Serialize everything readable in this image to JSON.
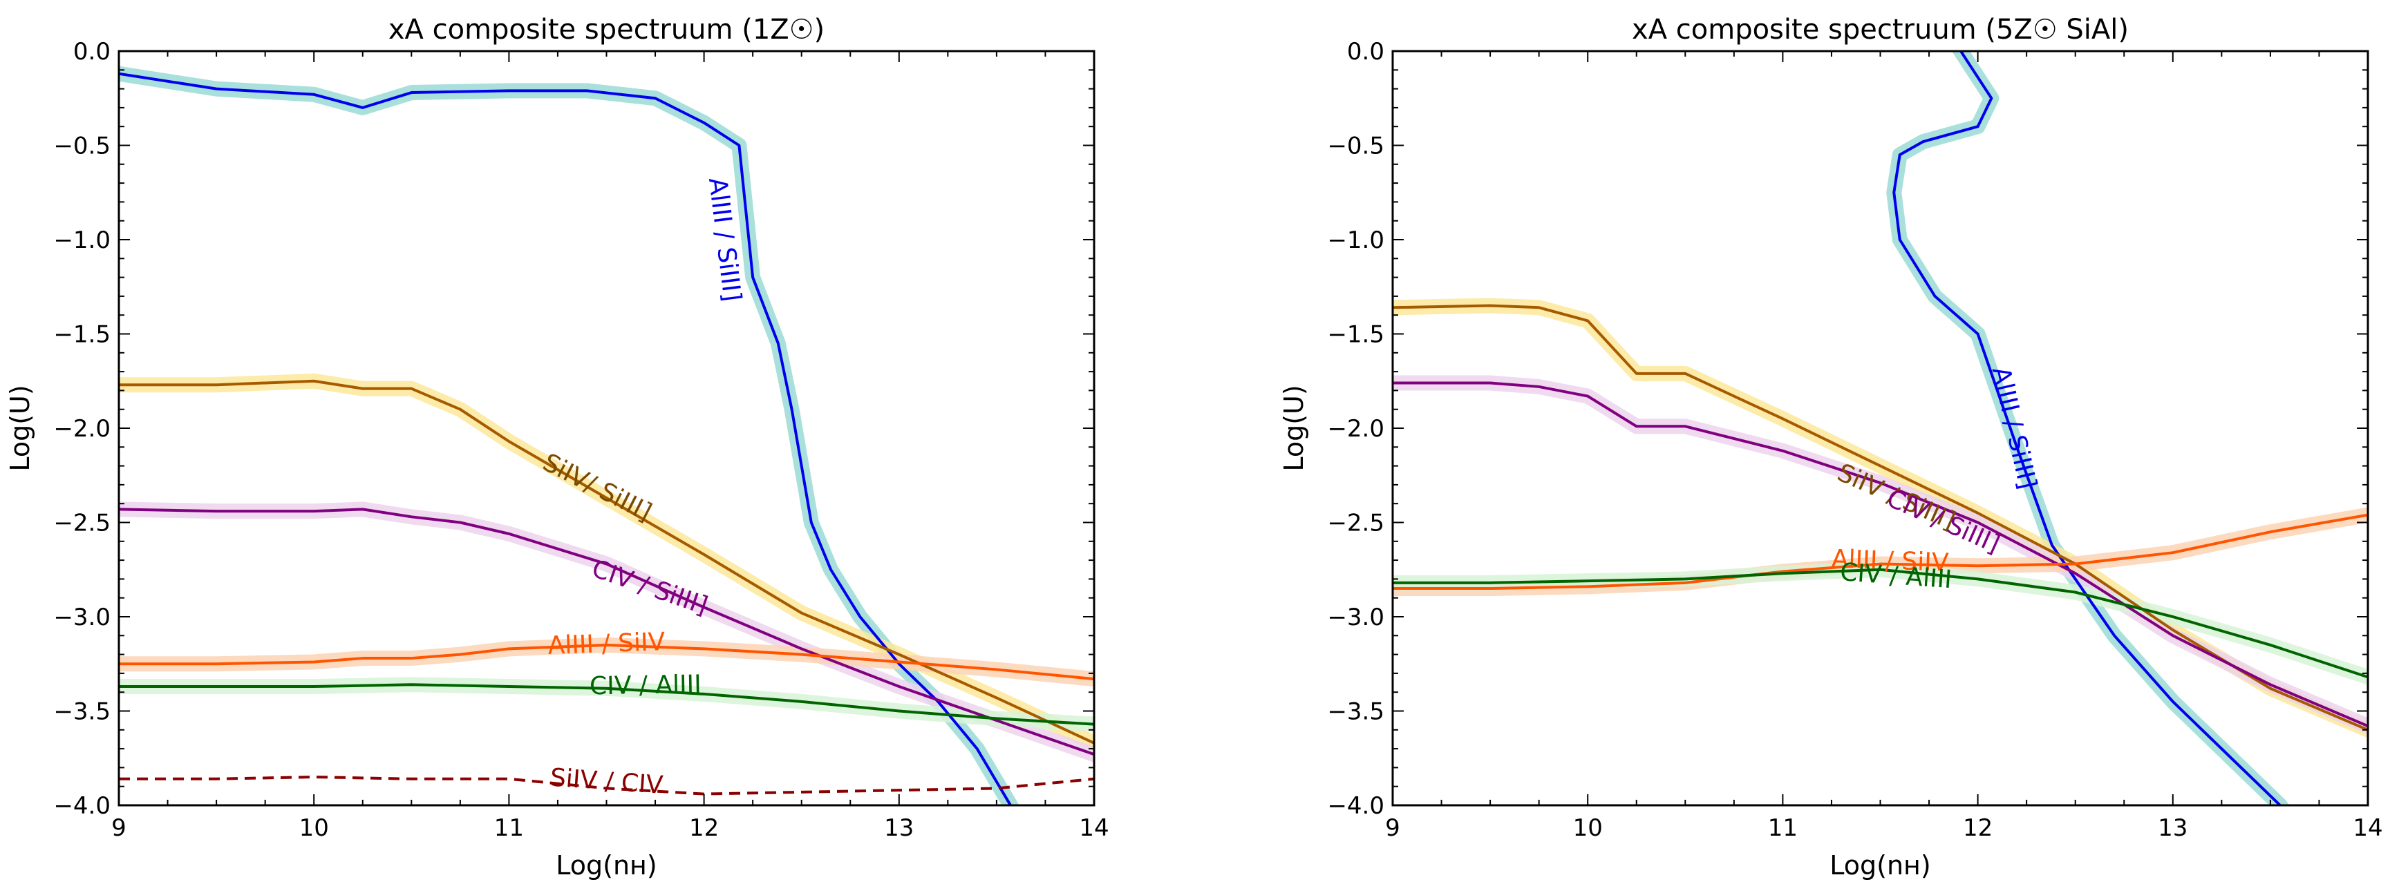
{
  "chart_data": [
    {
      "type": "line",
      "title": "xA composite spectruum (1Z☉)",
      "xlabel": "Log(nʜ)",
      "ylabel": "Log(U)",
      "xlim": [
        9,
        14
      ],
      "ylim": [
        -4.0,
        0.0
      ],
      "xticks": [
        "9",
        "10",
        "11",
        "12",
        "13",
        "14"
      ],
      "yticks": [
        "0.0",
        "−0.5",
        "−1.0",
        "−1.5",
        "−2.0",
        "−2.5",
        "−3.0",
        "−3.5",
        "−4.0"
      ],
      "series": [
        {
          "name": "AlIII / SiIII]",
          "color": "#0000ee",
          "band": "#9adbd6",
          "dashed": false,
          "x": [
            9.0,
            9.5,
            10.0,
            10.25,
            10.5,
            11.0,
            11.4,
            11.75,
            12.0,
            12.18,
            12.2,
            12.25,
            12.38,
            12.45,
            12.55,
            12.65,
            12.8,
            13.0,
            13.2,
            13.4,
            13.6
          ],
          "y": [
            -0.12,
            -0.2,
            -0.23,
            -0.3,
            -0.22,
            -0.21,
            -0.21,
            -0.25,
            -0.38,
            -0.5,
            -0.7,
            -1.2,
            -1.55,
            -1.9,
            -2.5,
            -2.75,
            -3.0,
            -3.25,
            -3.45,
            -3.7,
            -4.05
          ]
        },
        {
          "name": "SiIV/ SiIII]",
          "color": "#a65a00",
          "band": "#fde79a",
          "dashed": false,
          "x": [
            9.0,
            9.5,
            10.0,
            10.25,
            10.5,
            10.75,
            11.0,
            11.5,
            12.0,
            12.5,
            13.0,
            13.5,
            14.0
          ],
          "y": [
            -1.77,
            -1.77,
            -1.75,
            -1.79,
            -1.79,
            -1.9,
            -2.07,
            -2.37,
            -2.67,
            -2.98,
            -3.2,
            -3.43,
            -3.67
          ]
        },
        {
          "name": "CIV / SiIII]",
          "color": "#800080",
          "band": "#ecd4ec",
          "dashed": false,
          "x": [
            9.0,
            9.5,
            10.0,
            10.25,
            10.5,
            10.75,
            11.0,
            11.5,
            12.0,
            12.5,
            13.0,
            13.5,
            14.0
          ],
          "y": [
            -2.43,
            -2.44,
            -2.44,
            -2.43,
            -2.47,
            -2.5,
            -2.56,
            -2.72,
            -2.95,
            -3.17,
            -3.37,
            -3.55,
            -3.73
          ]
        },
        {
          "name": "AlIII / SiIV",
          "color": "#ff5500",
          "band": "#fbd4b4",
          "dashed": false,
          "x": [
            9.0,
            9.5,
            10.0,
            10.25,
            10.5,
            10.75,
            11.0,
            11.5,
            12.0,
            12.5,
            13.0,
            13.5,
            14.0
          ],
          "y": [
            -3.25,
            -3.25,
            -3.24,
            -3.22,
            -3.22,
            -3.2,
            -3.17,
            -3.15,
            -3.17,
            -3.2,
            -3.24,
            -3.28,
            -3.33
          ]
        },
        {
          "name": "CIV / AlIII",
          "color": "#006400",
          "band": "#d7f3d7",
          "dashed": false,
          "x": [
            9.0,
            9.5,
            10.0,
            10.5,
            11.0,
            11.5,
            12.0,
            12.5,
            13.0,
            13.5,
            14.0
          ],
          "y": [
            -3.37,
            -3.37,
            -3.37,
            -3.36,
            -3.37,
            -3.38,
            -3.41,
            -3.45,
            -3.5,
            -3.54,
            -3.57
          ]
        },
        {
          "name": "SiIV / CIV",
          "color": "#8b0000",
          "band": null,
          "dashed": true,
          "x": [
            9.0,
            9.5,
            10.0,
            10.5,
            11.0,
            11.5,
            12.0,
            12.5,
            13.0,
            13.5,
            14.0
          ],
          "y": [
            -3.86,
            -3.86,
            -3.85,
            -3.86,
            -3.86,
            -3.91,
            -3.94,
            -3.93,
            -3.92,
            -3.91,
            -3.86
          ]
        }
      ],
      "labels": [
        {
          "text": "AlIII / SiIII]",
          "color": "#0000ee",
          "x": 12.1,
          "y": -1.0,
          "angle": 83
        },
        {
          "text": "SiIV/ SiIII]",
          "color": "#7a4a00",
          "x": 11.45,
          "y": -2.32,
          "angle": 27
        },
        {
          "text": "CIV / SiIII]",
          "color": "#800080",
          "x": 11.72,
          "y": -2.85,
          "angle": 19
        },
        {
          "text": "AlIII / SiIV",
          "color": "#ff5500",
          "x": 11.5,
          "y": -3.15,
          "angle": -2
        },
        {
          "text": "CIV / AlIII",
          "color": "#006400",
          "x": 11.7,
          "y": -3.37,
          "angle": -1
        },
        {
          "text": "SiIV / CIV",
          "color": "#8b0000",
          "x": 11.5,
          "y": -3.88,
          "angle": 4
        }
      ]
    },
    {
      "type": "line",
      "title": "xA composite spectruum (5Z☉ SiAl)",
      "xlabel": "Log(nʜ)",
      "ylabel": "Log(U)",
      "xlim": [
        9,
        14
      ],
      "ylim": [
        -4.0,
        0.0
      ],
      "xticks": [
        "9",
        "10",
        "11",
        "12",
        "13",
        "14"
      ],
      "yticks": [
        "0.0",
        "−0.5",
        "−1.0",
        "−1.5",
        "−2.0",
        "−2.5",
        "−3.0",
        "−3.5",
        "−4.0"
      ],
      "series": [
        {
          "name": "AlIII / SiIII]",
          "color": "#0000ee",
          "band": "#9adbd6",
          "dashed": false,
          "x": [
            11.9,
            12.07,
            12.0,
            11.72,
            11.6,
            11.57,
            11.6,
            11.78,
            12.0,
            12.2,
            12.38,
            12.5,
            12.7,
            13.0,
            13.3,
            13.55,
            13.75
          ],
          "y": [
            0.02,
            -0.25,
            -0.4,
            -0.48,
            -0.55,
            -0.75,
            -1.0,
            -1.3,
            -1.5,
            -2.1,
            -2.62,
            -2.8,
            -3.1,
            -3.45,
            -3.75,
            -4.0,
            -4.3
          ]
        },
        {
          "name": "SiIV / SiIII]",
          "color": "#a65a00",
          "band": "#fde79a",
          "dashed": false,
          "x": [
            9.0,
            9.5,
            9.75,
            10.0,
            10.25,
            10.5,
            11.0,
            11.5,
            12.0,
            12.5,
            13.0,
            13.5,
            14.0
          ],
          "y": [
            -1.36,
            -1.35,
            -1.36,
            -1.43,
            -1.71,
            -1.71,
            -1.95,
            -2.2,
            -2.45,
            -2.72,
            -3.07,
            -3.38,
            -3.6
          ]
        },
        {
          "name": "CIV / SiIII]",
          "color": "#800080",
          "band": "#ecd4ec",
          "dashed": false,
          "x": [
            9.0,
            9.5,
            9.75,
            10.0,
            10.25,
            10.5,
            11.0,
            11.5,
            12.0,
            12.5,
            13.0,
            13.5,
            14.0
          ],
          "y": [
            -1.76,
            -1.76,
            -1.78,
            -1.83,
            -1.99,
            -1.99,
            -2.12,
            -2.29,
            -2.5,
            -2.77,
            -3.1,
            -3.36,
            -3.58
          ]
        },
        {
          "name": "AlIII / SiIV",
          "color": "#ff5500",
          "band": "#fbd4b4",
          "dashed": false,
          "x": [
            9.0,
            9.5,
            10.0,
            10.5,
            11.0,
            11.5,
            12.0,
            12.5,
            13.0,
            13.5,
            14.0
          ],
          "y": [
            -2.85,
            -2.85,
            -2.84,
            -2.82,
            -2.76,
            -2.72,
            -2.73,
            -2.72,
            -2.66,
            -2.55,
            -2.46
          ]
        },
        {
          "name": "CIV / AlIII",
          "color": "#006400",
          "band": "#d7f3d7",
          "dashed": false,
          "x": [
            9.0,
            9.5,
            10.0,
            10.5,
            11.0,
            11.5,
            12.0,
            12.5,
            13.0,
            13.5,
            14.0
          ],
          "y": [
            -2.82,
            -2.82,
            -2.81,
            -2.8,
            -2.77,
            -2.75,
            -2.8,
            -2.87,
            -3.0,
            -3.15,
            -3.32
          ]
        }
      ],
      "labels": [
        {
          "text": "AlIII / SiIII]",
          "color": "#0000ee",
          "x": 12.18,
          "y": -2.0,
          "angle": 77
        },
        {
          "text": "SiIV / SiIII]",
          "color": "#7a4a00",
          "x": 11.58,
          "y": -2.37,
          "angle": 24
        },
        {
          "text": "CIV / SiIII]",
          "color": "#800080",
          "x": 11.82,
          "y": -2.5,
          "angle": 24
        },
        {
          "text": "AlIII / SiIV",
          "color": "#ff5500",
          "x": 11.55,
          "y": -2.71,
          "angle": 2
        },
        {
          "text": "CIV / AlIII",
          "color": "#006400",
          "x": 11.58,
          "y": -2.79,
          "angle": 4
        }
      ]
    }
  ]
}
